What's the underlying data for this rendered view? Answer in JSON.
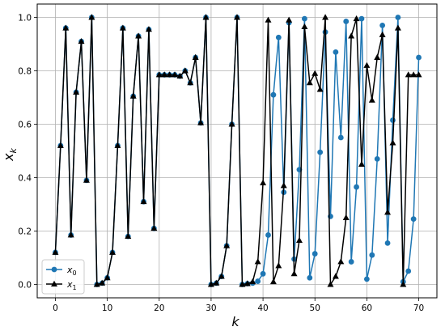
{
  "chart_data": {
    "type": "line",
    "title": "",
    "xlabel": "k",
    "ylabel": "x_k",
    "xlim": [
      -3.5,
      73.5
    ],
    "ylim": [
      -0.05,
      1.05
    ],
    "grid": true,
    "legend_placement": "bottom-left",
    "x_ticks": [
      0,
      10,
      20,
      30,
      40,
      50,
      60,
      70
    ],
    "x_tick_labels": [
      "0",
      "10",
      "20",
      "30",
      "40",
      "50",
      "60",
      "70"
    ],
    "y_ticks": [
      0.0,
      0.2,
      0.4,
      0.6,
      0.8,
      1.0
    ],
    "y_tick_labels": [
      "0.0",
      "0.2",
      "0.4",
      "0.6",
      "0.8",
      "1.0"
    ],
    "x": [
      0,
      1,
      2,
      3,
      4,
      5,
      6,
      7,
      8,
      9,
      10,
      11,
      12,
      13,
      14,
      15,
      16,
      17,
      18,
      19,
      20,
      21,
      22,
      23,
      24,
      25,
      26,
      27,
      28,
      29,
      30,
      31,
      32,
      33,
      34,
      35,
      36,
      37,
      38,
      39,
      40,
      41,
      42,
      43,
      44,
      45,
      46,
      47,
      48,
      49,
      50,
      51,
      52,
      53,
      54,
      55,
      56,
      57,
      58,
      59,
      60,
      61,
      62,
      63,
      64,
      65,
      66,
      67,
      68,
      69,
      70
    ],
    "series": [
      {
        "name": "x_0",
        "label_main": "x",
        "label_sub": "0",
        "color": "#1f77b4",
        "marker": "circle",
        "values": [
          0.12,
          0.52,
          0.96,
          0.185,
          0.72,
          0.91,
          0.39,
          1.0,
          0.0,
          0.005,
          0.025,
          0.12,
          0.52,
          0.96,
          0.18,
          0.705,
          0.93,
          0.31,
          0.955,
          0.21,
          0.785,
          0.785,
          0.785,
          0.785,
          0.78,
          0.8,
          0.755,
          0.85,
          0.605,
          1.0,
          0.0,
          0.005,
          0.03,
          0.145,
          0.6,
          1.0,
          0.0,
          0.003,
          0.005,
          0.012,
          0.04,
          0.185,
          0.71,
          0.925,
          0.345,
          0.98,
          0.095,
          0.43,
          0.995,
          0.025,
          0.115,
          0.495,
          0.945,
          0.255,
          0.87,
          0.55,
          0.985,
          0.085,
          0.365,
          0.995,
          0.02,
          0.11,
          0.47,
          0.97,
          0.155,
          0.615,
          1.0,
          0.01,
          0.05,
          0.245,
          0.85
        ]
      },
      {
        "name": "x_1",
        "label_main": "x",
        "label_sub": "1",
        "color": "#000000",
        "marker": "triangle",
        "values": [
          0.12,
          0.52,
          0.96,
          0.185,
          0.72,
          0.91,
          0.39,
          1.0,
          0.0,
          0.005,
          0.025,
          0.12,
          0.52,
          0.96,
          0.18,
          0.705,
          0.93,
          0.31,
          0.955,
          0.21,
          0.785,
          0.785,
          0.785,
          0.785,
          0.78,
          0.8,
          0.755,
          0.85,
          0.605,
          1.0,
          0.0,
          0.005,
          0.03,
          0.145,
          0.6,
          1.0,
          0.0,
          0.003,
          0.01,
          0.085,
          0.38,
          0.99,
          0.01,
          0.07,
          0.37,
          0.99,
          0.04,
          0.165,
          0.965,
          0.755,
          0.79,
          0.73,
          1.0,
          0.0,
          0.03,
          0.085,
          0.25,
          0.93,
          0.995,
          0.45,
          0.82,
          0.69,
          0.85,
          0.935,
          0.27,
          0.53,
          0.96,
          0.0,
          0.785,
          0.785,
          0.785
        ]
      }
    ]
  }
}
